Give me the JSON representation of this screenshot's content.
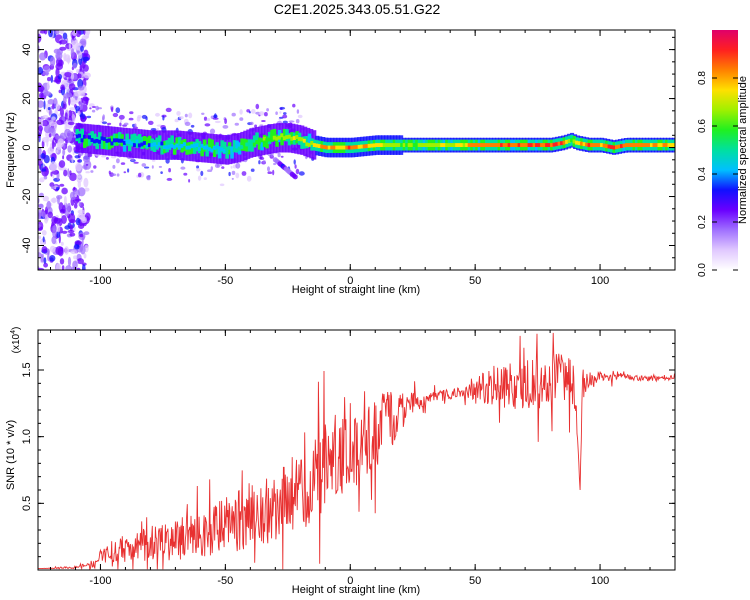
{
  "title": "C2E1.2025.343.05.51.G22",
  "chart_data": [
    {
      "type": "heatmap",
      "name": "spectrogram",
      "xlabel": "Height of straight line (km)",
      "ylabel": "Frequency (Hz)",
      "xlim": [
        -125,
        130
      ],
      "ylim": [
        -50,
        48
      ],
      "xticks": [
        -100,
        -50,
        0,
        50,
        100
      ],
      "yticks": [
        -40,
        -20,
        0,
        20,
        40
      ],
      "colorbar": {
        "label": "Normalized spectral amplitude",
        "range": [
          0,
          1
        ],
        "ticks": [
          0.0,
          0.2,
          0.4,
          0.6,
          0.8
        ],
        "tick_labels": [
          "0.0",
          "0.2",
          "0.4",
          "0.6",
          "0.8"
        ],
        "colormap": [
          "#ffffff",
          "#e0c8ff",
          "#a070ff",
          "#6a00ff",
          "#1010ff",
          "#00c0ff",
          "#00e0a0",
          "#20f020",
          "#a0f000",
          "#ffe000",
          "#ff8000",
          "#ff2020",
          "#e0006a"
        ]
      },
      "ridge": {
        "x": [
          -110,
          -100,
          -90,
          -80,
          -70,
          -60,
          -50,
          -45,
          -40,
          -35,
          -30,
          -25,
          -20,
          -15,
          -10,
          -5,
          0,
          10,
          20,
          30,
          40,
          50,
          60,
          70,
          80,
          85,
          88,
          90,
          95,
          100,
          105,
          110,
          120,
          130
        ],
        "freq": [
          4,
          3,
          2,
          1,
          1,
          0,
          -1,
          0,
          2,
          3,
          4,
          4,
          3,
          1,
          0,
          0,
          0,
          1,
          1,
          1,
          1,
          1,
          1,
          1,
          1,
          2,
          3,
          2,
          1,
          1,
          0,
          1,
          1,
          1
        ],
        "amplitude": [
          0.35,
          0.4,
          0.4,
          0.45,
          0.45,
          0.45,
          0.5,
          0.55,
          0.6,
          0.65,
          0.7,
          0.75,
          0.7,
          0.8,
          0.85,
          0.85,
          0.9,
          0.8,
          0.7,
          0.7,
          0.75,
          0.85,
          0.9,
          0.9,
          0.95,
          0.9,
          0.6,
          0.8,
          0.9,
          0.85,
          0.95,
          0.9,
          0.85,
          0.8
        ]
      },
      "noise_band_x": [
        -125,
        -105
      ],
      "side_feature": {
        "x": [
          -30,
          -22
        ],
        "freq": [
          -5,
          -12
        ]
      }
    },
    {
      "type": "line",
      "name": "snr",
      "xlabel": "Height of straight line (km)",
      "ylabel": "SNR (10 * v/v)",
      "scale_label": "(x10",
      "scale_exp": "4",
      "scale_suffix": ")",
      "xlim": [
        -125,
        130
      ],
      "ylim": [
        0,
        18000
      ],
      "xticks": [
        -100,
        -50,
        0,
        50,
        100
      ],
      "yticks": [
        5000,
        10000,
        15000
      ],
      "ytick_labels": [
        "0.5",
        "1.0",
        "1.5"
      ],
      "color": "#e83030",
      "series": [
        {
          "name": "SNR",
          "x": [
            -125,
            -110,
            -102,
            -100,
            -95,
            -90,
            -85,
            -80,
            -75,
            -70,
            -65,
            -60,
            -55,
            -50,
            -45,
            -40,
            -35,
            -30,
            -25,
            -20,
            -15,
            -10,
            -5,
            0,
            5,
            10,
            15,
            20,
            25,
            30,
            35,
            40,
            45,
            50,
            55,
            60,
            65,
            70,
            75,
            80,
            85,
            88,
            90,
            92,
            93,
            95,
            100,
            105,
            110,
            115,
            120,
            125,
            130
          ],
          "mean": [
            100,
            200,
            400,
            900,
            1500,
            1600,
            1800,
            2000,
            2200,
            2300,
            2400,
            2700,
            2900,
            3300,
            3800,
            4200,
            4600,
            5000,
            5500,
            6000,
            6800,
            7800,
            8800,
            9400,
            9800,
            10200,
            11000,
            11800,
            12500,
            12800,
            13000,
            13200,
            13300,
            13500,
            13800,
            13900,
            13700,
            13900,
            14000,
            14100,
            14300,
            14000,
            13600,
            6000,
            13800,
            14300,
            14500,
            14400,
            14500,
            14400,
            14300,
            14400,
            14500
          ],
          "jitter": [
            0,
            100,
            300,
            600,
            900,
            1000,
            1200,
            1400,
            1600,
            1700,
            1800,
            1900,
            2000,
            2200,
            2400,
            2500,
            2700,
            2900,
            3000,
            3100,
            3200,
            3300,
            3300,
            3300,
            3200,
            2800,
            2400,
            1500,
            800,
            500,
            400,
            400,
            400,
            1200,
            1400,
            1600,
            1800,
            1900,
            2000,
            2000,
            2000,
            2000,
            1500,
            0,
            1500,
            700,
            300,
            300,
            200,
            200,
            200,
            200,
            200
          ]
        }
      ]
    }
  ]
}
